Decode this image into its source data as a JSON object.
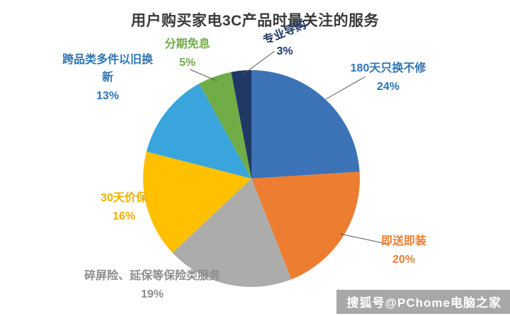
{
  "watermark": "搜狐号@PChome电脑之家",
  "chart_data": {
    "type": "pie",
    "title": "用户购买家电3C产品时最关注的服务",
    "start_angle_deg": 0,
    "direction": "clockwise",
    "legend": "none",
    "slices": [
      {
        "label": "180天只换不修",
        "value": 24,
        "pct": "24%",
        "color": "#3B73B6",
        "label_color": "#2E75B6"
      },
      {
        "label": "即送即装",
        "value": 20,
        "pct": "20%",
        "color": "#ED7D31",
        "label_color": "#ED7D31"
      },
      {
        "label": "碎屏险、延保等保险类服务",
        "value": 19,
        "pct": "19%",
        "color": "#ACACAC",
        "label_color": "#8C8C8C"
      },
      {
        "label": "30天价保",
        "value": 16,
        "pct": "16%",
        "color": "#FFC000",
        "label_color": "#EFB000"
      },
      {
        "label": "跨品类多件以旧换新",
        "value": 13,
        "pct": "13%",
        "color": "#3AA5DC",
        "label_color": "#2E75B6"
      },
      {
        "label": "分期免息",
        "value": 5,
        "pct": "5%",
        "color": "#70AD47",
        "label_color": "#70AD47"
      },
      {
        "label": "专业导购",
        "value": 3,
        "pct": "3%",
        "color": "#1F3864",
        "label_color": "#1F3864"
      }
    ]
  }
}
